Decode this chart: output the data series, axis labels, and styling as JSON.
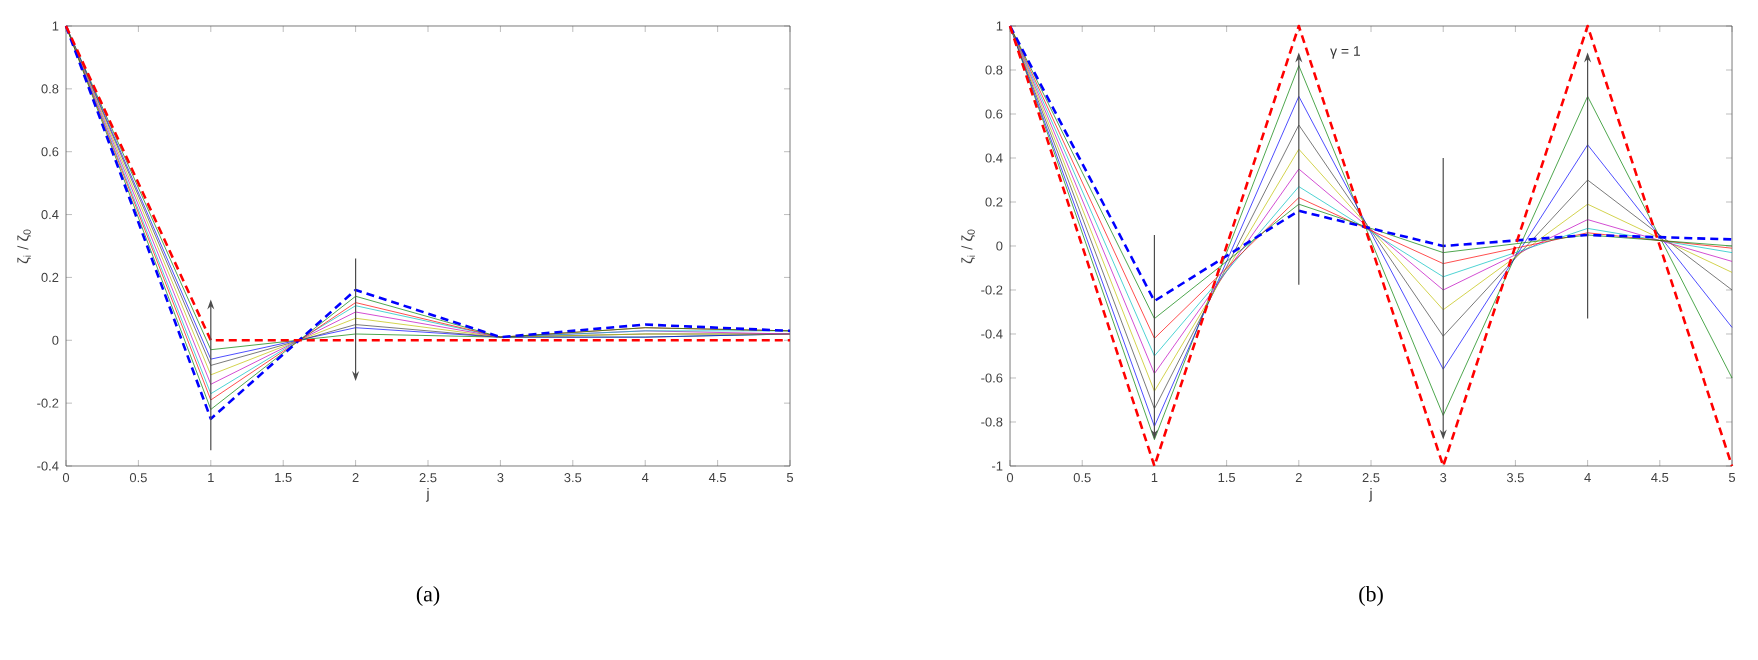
{
  "chart_data": [
    {
      "type": "line",
      "x": [
        0,
        1,
        2,
        3,
        4,
        5
      ],
      "xlim": [
        0,
        5
      ],
      "ylim": [
        -0.4,
        1
      ],
      "xticks": [
        0,
        0.5,
        1,
        1.5,
        2,
        2.5,
        3,
        3.5,
        4,
        4.5,
        5
      ],
      "yticks": [
        -0.4,
        -0.2,
        0,
        0.2,
        0.4,
        0.6,
        0.8,
        1
      ],
      "xlabel": "j",
      "ylabel": "ζ$_{i}$ / ζ$_{0}$",
      "series": [
        {
          "color": "#008000",
          "line_style": "solid",
          "values": [
            1,
            -0.03,
            0.02,
            0.01,
            0.01,
            0.02
          ]
        },
        {
          "color": "#0000ff",
          "line_style": "solid",
          "values": [
            1,
            -0.06,
            0.04,
            0.01,
            0.01,
            0.02
          ]
        },
        {
          "color": "#404040",
          "line_style": "solid",
          "values": [
            1,
            -0.08,
            0.05,
            0.01,
            0.02,
            0.02
          ]
        },
        {
          "color": "#bfbf00",
          "line_style": "solid",
          "values": [
            1,
            -0.11,
            0.07,
            0.01,
            0.02,
            0.02
          ]
        },
        {
          "color": "#bf00bf",
          "line_style": "solid",
          "values": [
            1,
            -0.14,
            0.09,
            0.01,
            0.03,
            0.02
          ]
        },
        {
          "color": "#00bfbf",
          "line_style": "solid",
          "values": [
            1,
            -0.17,
            0.11,
            0.01,
            0.03,
            0.03
          ]
        },
        {
          "color": "#ff0000",
          "line_style": "solid",
          "values": [
            1,
            -0.19,
            0.12,
            0.01,
            0.04,
            0.03
          ]
        },
        {
          "color": "#008000",
          "line_style": "solid",
          "values": [
            1,
            -0.22,
            0.14,
            0.01,
            0.04,
            0.03
          ]
        },
        {
          "color": "#0000ff",
          "line_style": "dashed",
          "values": [
            1,
            -0.25,
            0.16,
            0.01,
            0.05,
            0.03
          ]
        },
        {
          "color": "#ff0000",
          "line_style": "dashed",
          "values": [
            1,
            0,
            0,
            0,
            0,
            0
          ]
        }
      ],
      "annotations": [
        "(a)"
      ]
    },
    {
      "type": "line",
      "x": [
        0,
        1,
        2,
        3,
        4,
        5
      ],
      "xlim": [
        0,
        5
      ],
      "ylim": [
        -1,
        1
      ],
      "xticks": [
        0,
        0.5,
        1,
        1.5,
        2,
        2.5,
        3,
        3.5,
        4,
        4.5,
        5
      ],
      "yticks": [
        -1,
        -0.8,
        -0.6,
        -0.4,
        -0.2,
        0,
        0.2,
        0.4,
        0.6,
        0.8,
        1
      ],
      "xlabel": "j",
      "ylabel": "ζ$_{i}$ / ζ$_{0}$",
      "series": [
        {
          "color": "#008000",
          "line_style": "solid",
          "values": [
            1,
            -0.88,
            0.82,
            -0.77,
            0.68,
            -0.6
          ]
        },
        {
          "color": "#0000ff",
          "line_style": "solid",
          "values": [
            1,
            -0.82,
            0.68,
            -0.56,
            0.46,
            -0.37
          ]
        },
        {
          "color": "#404040",
          "line_style": "solid",
          "values": [
            1,
            -0.74,
            0.55,
            -0.41,
            0.3,
            -0.2
          ]
        },
        {
          "color": "#bfbf00",
          "line_style": "solid",
          "values": [
            1,
            -0.66,
            0.44,
            -0.29,
            0.19,
            -0.12
          ]
        },
        {
          "color": "#bf00bf",
          "line_style": "solid",
          "values": [
            1,
            -0.58,
            0.35,
            -0.2,
            0.12,
            -0.07
          ]
        },
        {
          "color": "#00bfbf",
          "line_style": "solid",
          "values": [
            1,
            -0.5,
            0.27,
            -0.14,
            0.08,
            -0.03
          ]
        },
        {
          "color": "#ff0000",
          "line_style": "solid",
          "values": [
            1,
            -0.42,
            0.22,
            -0.08,
            0.06,
            -0.01
          ]
        },
        {
          "color": "#008000",
          "line_style": "solid",
          "values": [
            1,
            -0.33,
            0.19,
            -0.03,
            0.05,
            0
          ]
        },
        {
          "color": "#0000ff",
          "line_style": "dashed",
          "values": [
            1,
            -0.25,
            0.16,
            0,
            0.05,
            0.03
          ]
        },
        {
          "color": "#ff0000",
          "line_style": "dashed",
          "values": [
            1,
            -1,
            1,
            -1,
            1,
            -1
          ]
        }
      ],
      "annotations": [
        {
          "text": "γ = 1",
          "x": 2,
          "y": 0.88
        },
        "(b)"
      ]
    }
  ]
}
